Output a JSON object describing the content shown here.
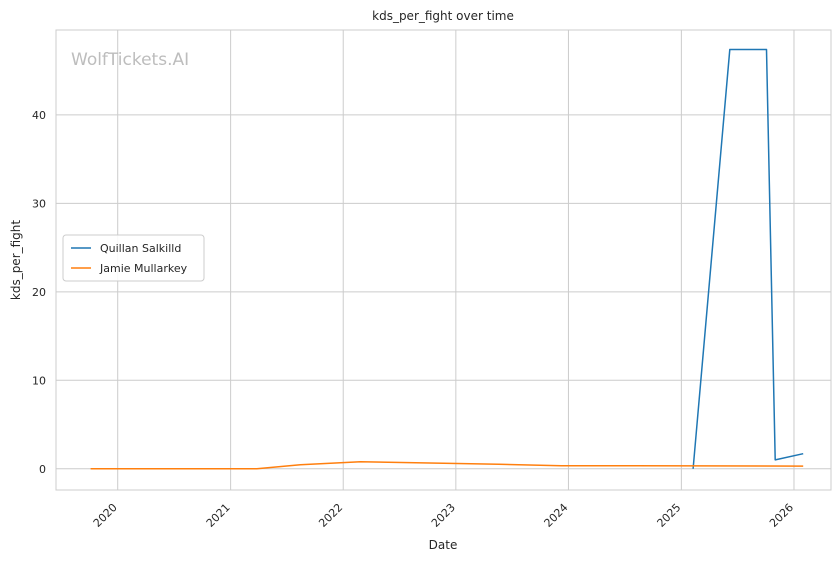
{
  "chart_data": {
    "type": "line",
    "title": "kds_per_fight over time",
    "xlabel": "Date",
    "ylabel": "kds_per_fight",
    "watermark": "WolfTickets.AI",
    "xlim": [
      "2019-06-15",
      "2026-05-01"
    ],
    "ylim": [
      -2.4,
      49.6
    ],
    "x_ticks": [
      "2020",
      "2021",
      "2022",
      "2023",
      "2024",
      "2025",
      "2026"
    ],
    "y_ticks": [
      0,
      10,
      20,
      30,
      40
    ],
    "grid": true,
    "legend_position": "center-left",
    "series": [
      {
        "name": "Quillan Salkilld",
        "color": "#1f77b4",
        "points": [
          {
            "x": "2025-02-08",
            "y": 0
          },
          {
            "x": "2025-06-07",
            "y": 47.4
          },
          {
            "x": "2025-10-04",
            "y": 47.4
          },
          {
            "x": "2025-11-01",
            "y": 1.0
          },
          {
            "x": "2026-01-31",
            "y": 1.7
          }
        ]
      },
      {
        "name": "Jamie Mullarkey",
        "color": "#ff7f0e",
        "points": [
          {
            "x": "2019-10-05",
            "y": 0
          },
          {
            "x": "2021-03-27",
            "y": 0
          },
          {
            "x": "2021-08-15",
            "y": 0.45
          },
          {
            "x": "2022-02-26",
            "y": 0.8
          },
          {
            "x": "2023-05-20",
            "y": 0.5
          },
          {
            "x": "2023-12-09",
            "y": 0.35
          },
          {
            "x": "2025-03-01",
            "y": 0.33
          },
          {
            "x": "2026-01-31",
            "y": 0.3
          }
        ]
      }
    ]
  }
}
